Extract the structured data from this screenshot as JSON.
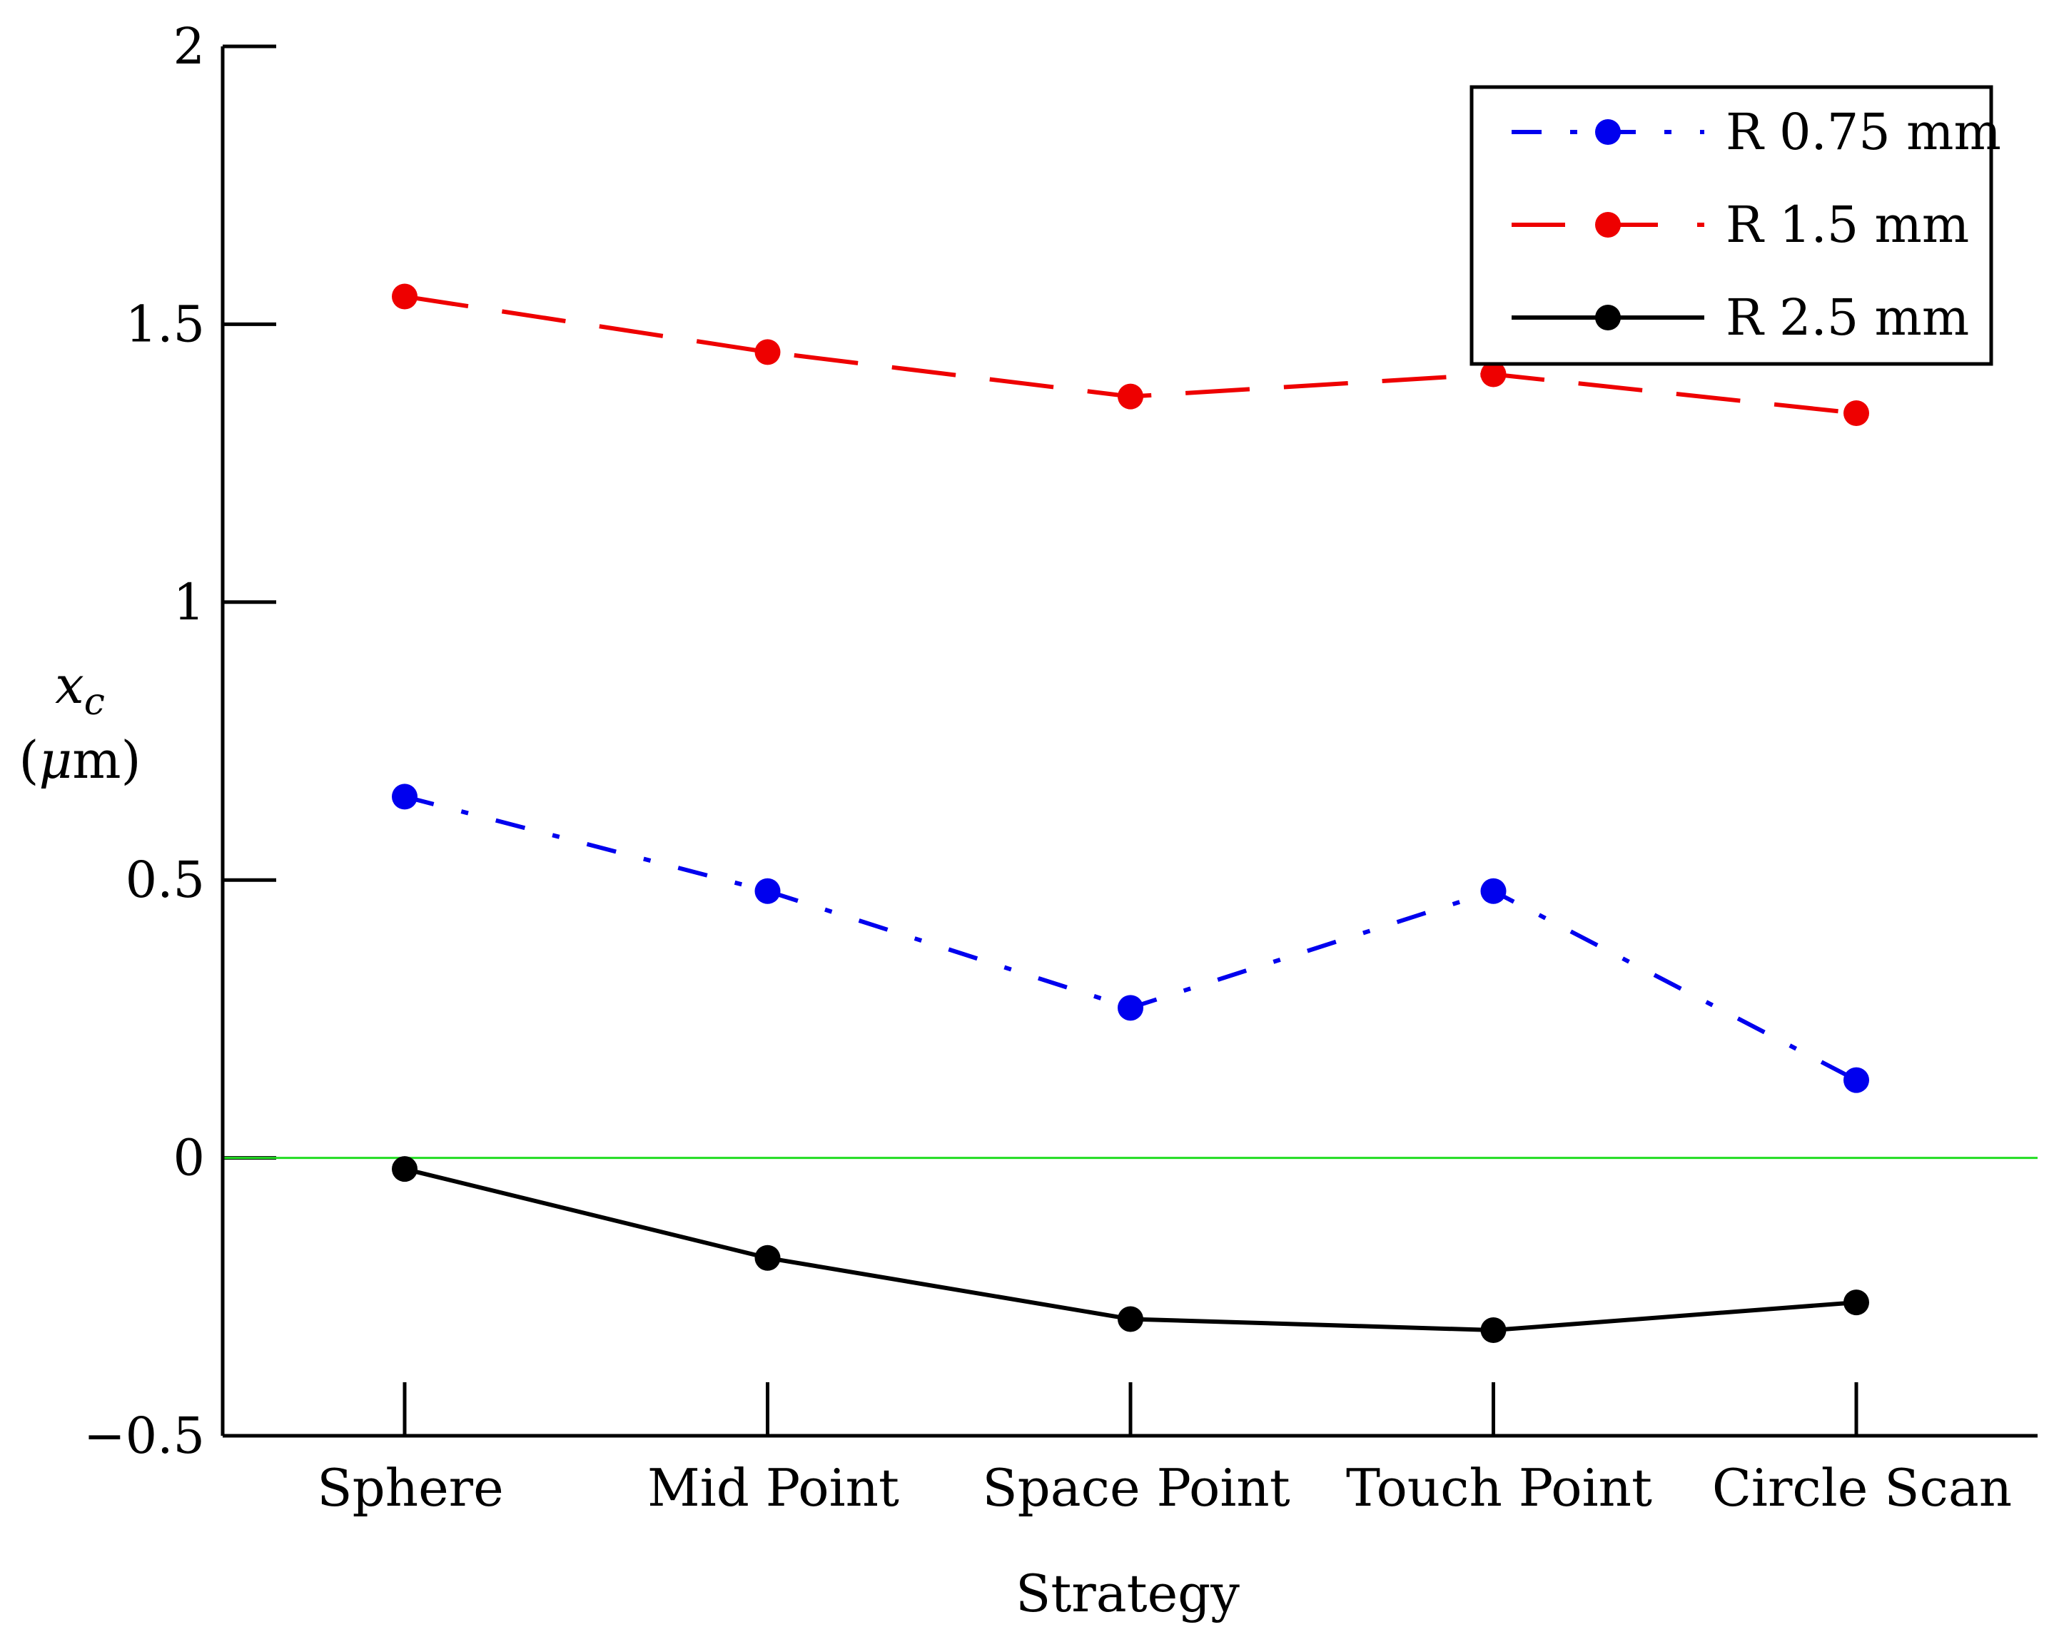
{
  "chart_data": {
    "type": "line",
    "title": "",
    "xlabel": "Strategy",
    "ylabel": {
      "symbol": "x",
      "subscript": "c",
      "unit_open": "(",
      "unit_mu": "μ",
      "unit_rest": "m)"
    },
    "categories": [
      "Sphere",
      "Mid Point",
      "Space Point",
      "Touch Point",
      "Circle Scan"
    ],
    "ylim": [
      -0.5,
      2
    ],
    "yticks": [
      -0.5,
      0,
      0.5,
      1,
      1.5,
      2
    ],
    "ytick_labels": [
      "−0.5",
      "0",
      "0.5",
      "1",
      "1.5",
      "2"
    ],
    "reference_line": {
      "y": 0,
      "color": "#22dd22"
    },
    "grid": false,
    "legend_position": "top-right",
    "series": [
      {
        "name": "R 0.75 mm",
        "color": "#0000ee",
        "line_style": "dash-dot",
        "marker": "circle",
        "values": [
          0.65,
          0.48,
          0.27,
          0.48,
          0.14
        ]
      },
      {
        "name": "R 1.5 mm",
        "color": "#ee0000",
        "line_style": "dashed",
        "marker": "circle",
        "values": [
          1.55,
          1.45,
          1.37,
          1.41,
          1.34
        ]
      },
      {
        "name": "R 2.5 mm",
        "color": "#000000",
        "line_style": "solid",
        "marker": "circle",
        "values": [
          -0.02,
          -0.18,
          -0.29,
          -0.31,
          -0.26
        ]
      }
    ]
  }
}
